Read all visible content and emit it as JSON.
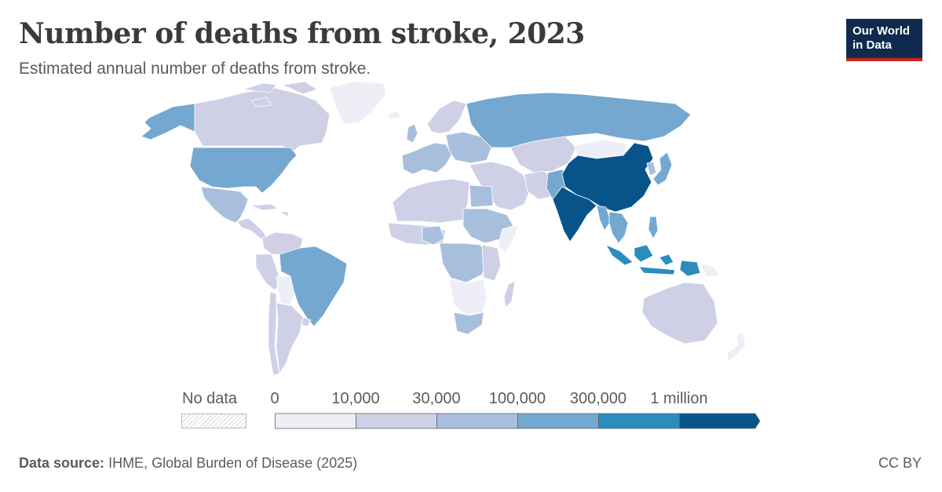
{
  "header": {
    "title": "Number of deaths from stroke, 2023",
    "subtitle": "Estimated annual number of deaths from stroke."
  },
  "logo": {
    "line1": "Our World",
    "line2": "in Data"
  },
  "legend": {
    "no_data_label": "No data",
    "ticks": [
      "0",
      "10,000",
      "30,000",
      "100,000",
      "300,000",
      "1 million"
    ],
    "colors": [
      "#eeeef6",
      "#cfd0e6",
      "#a8bedd",
      "#74a8d0",
      "#2b8cbe",
      "#08548a"
    ]
  },
  "chart_data": {
    "type": "choropleth",
    "title": "Number of deaths from stroke, 2023",
    "subtitle": "Estimated annual number of deaths from stroke.",
    "bins": [
      {
        "range": "0–10,000",
        "color": "#eeeef6"
      },
      {
        "range": "10,000–30,000",
        "color": "#cfd0e6"
      },
      {
        "range": "30,000–100,000",
        "color": "#a8bedd"
      },
      {
        "range": "100,000–300,000",
        "color": "#74a8d0"
      },
      {
        "range": "300,000–1 million",
        "color": "#2b8cbe"
      },
      {
        "range": ">1 million",
        "color": "#08548a"
      }
    ],
    "regions": [
      {
        "name": "China",
        "bin": ">1 million"
      },
      {
        "name": "India",
        "bin": ">1 million"
      },
      {
        "name": "Indonesia",
        "bin": "300,000–1 million"
      },
      {
        "name": "Russia",
        "bin": "100,000–300,000"
      },
      {
        "name": "United States",
        "bin": "100,000–300,000"
      },
      {
        "name": "Brazil",
        "bin": "100,000–300,000"
      },
      {
        "name": "Japan",
        "bin": "100,000–300,000"
      },
      {
        "name": "Pakistan",
        "bin": "100,000–300,000"
      },
      {
        "name": "Bangladesh",
        "bin": "100,000–300,000"
      },
      {
        "name": "Vietnam",
        "bin": "100,000–300,000"
      },
      {
        "name": "Philippines",
        "bin": "100,000–300,000"
      },
      {
        "name": "Mexico",
        "bin": "30,000–100,000"
      },
      {
        "name": "Egypt",
        "bin": "30,000–100,000"
      },
      {
        "name": "Nigeria",
        "bin": "30,000–100,000"
      },
      {
        "name": "DR Congo",
        "bin": "30,000–100,000"
      },
      {
        "name": "Ethiopia",
        "bin": "30,000–100,000"
      },
      {
        "name": "South Africa",
        "bin": "30,000–100,000"
      },
      {
        "name": "Canada",
        "bin": "10,000–30,000"
      },
      {
        "name": "Australia",
        "bin": "10,000–30,000"
      },
      {
        "name": "Kazakhstan",
        "bin": "10,000–30,000"
      },
      {
        "name": "Argentina",
        "bin": "10,000–30,000"
      },
      {
        "name": "Greenland",
        "bin": "0–10,000"
      }
    ]
  },
  "footer": {
    "source_label": "Data source:",
    "source_text": "IHME, Global Burden of Disease (2025)",
    "license": "CC BY"
  }
}
